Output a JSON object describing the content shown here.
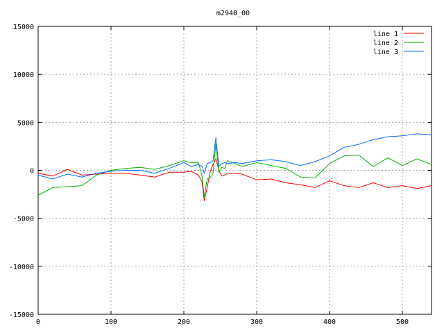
{
  "chart_data": {
    "type": "line",
    "title": "m2940_00",
    "xlabel": "",
    "ylabel": "",
    "xlim": [
      0,
      540
    ],
    "ylim": [
      -15000,
      15000
    ],
    "grid": true,
    "legend_position": "top-right",
    "x_ticks": [
      "0",
      "100",
      "200",
      "300",
      "400",
      "500"
    ],
    "y_ticks": [
      "-15000",
      "-10000",
      "-5000",
      "0",
      "5000",
      "10000",
      "15000"
    ],
    "x": [
      0,
      20,
      40,
      60,
      80,
      100,
      120,
      140,
      160,
      180,
      200,
      210,
      220,
      225,
      228,
      232,
      236,
      240,
      244,
      248,
      252,
      256,
      260,
      270,
      280,
      300,
      320,
      340,
      360,
      380,
      400,
      420,
      440,
      460,
      480,
      500,
      520,
      540
    ],
    "series": [
      {
        "name": "line 1",
        "color": "#ff0000",
        "values": [
          -300,
          -600,
          100,
          -500,
          -400,
          -300,
          -300,
          -500,
          -700,
          -200,
          -200,
          -100,
          -500,
          -1200,
          -3200,
          -1800,
          -200,
          600,
          1200,
          0,
          -600,
          -500,
          -300,
          -300,
          -400,
          -1000,
          -900,
          -1300,
          -1500,
          -1800,
          -1100,
          -1600,
          -1800,
          -1300,
          -1800,
          -1600,
          -1900,
          -1600
        ]
      },
      {
        "name": "line 2",
        "color": "#00b000",
        "values": [
          -2600,
          -1800,
          -1700,
          -1600,
          -500,
          0,
          200,
          300,
          100,
          500,
          1000,
          800,
          800,
          -600,
          -2800,
          -900,
          -800,
          -300,
          2800,
          -200,
          300,
          200,
          1000,
          700,
          400,
          800,
          500,
          200,
          -700,
          -800,
          700,
          1500,
          1600,
          400,
          1300,
          500,
          1200,
          600
        ]
      },
      {
        "name": "line 3",
        "color": "#0066ff",
        "values": [
          -500,
          -900,
          -400,
          -700,
          -300,
          -100,
          0,
          0,
          -300,
          200,
          800,
          400,
          600,
          400,
          -300,
          700,
          800,
          1000,
          3400,
          400,
          700,
          800,
          700,
          800,
          700,
          1000,
          1100,
          900,
          500,
          900,
          1500,
          2400,
          2700,
          3200,
          3500,
          3600,
          3800,
          3700
        ]
      }
    ]
  }
}
